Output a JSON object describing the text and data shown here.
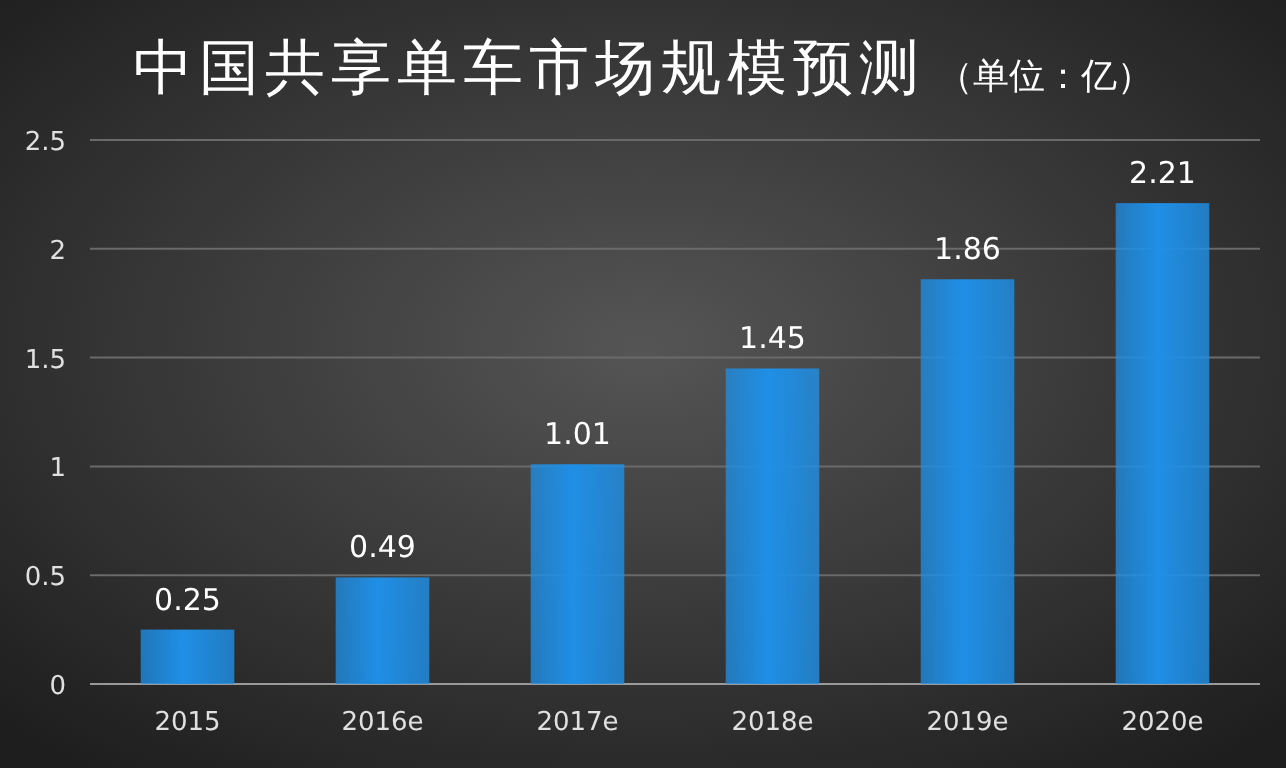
{
  "chart_data": {
    "type": "bar",
    "title": "中国共享单车市场规模预测",
    "subtitle": "（单位：亿）",
    "categories": [
      "2015",
      "2016e",
      "2017e",
      "2018e",
      "2019e",
      "2020e"
    ],
    "values": [
      0.25,
      0.49,
      1.01,
      1.45,
      1.86,
      2.21
    ],
    "color": "#1f8fe6",
    "ylim": [
      0,
      2.5
    ],
    "yticks": [
      0,
      0.5,
      1,
      1.5,
      2,
      2.5
    ],
    "grid": "y",
    "data_labels": true
  }
}
